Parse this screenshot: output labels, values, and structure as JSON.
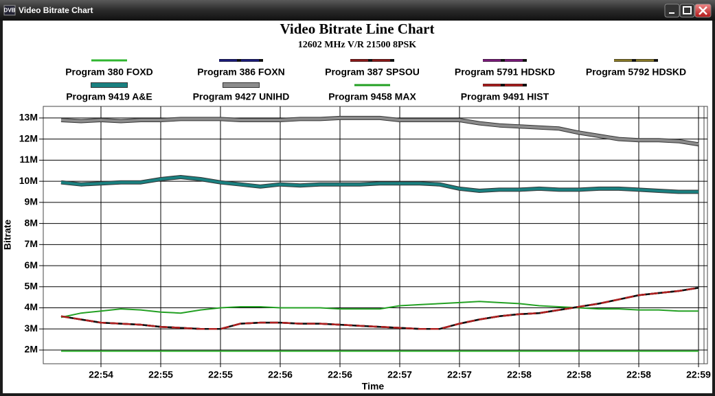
{
  "window": {
    "title": "Video Bitrate Chart"
  },
  "chart_data": {
    "type": "line",
    "title": "Video Bitrate Line Chart",
    "subtitle": "12602 MHz V/R 21500 8PSK",
    "x_label": "Time",
    "y_label": "Bitrate",
    "grid": true,
    "legend_position": "top",
    "categories": [
      null,
      null,
      "22:54",
      null,
      null,
      "22:55",
      null,
      null,
      "22:55",
      null,
      null,
      "22:56",
      null,
      null,
      "22:56",
      null,
      null,
      "22:57",
      null,
      null,
      "22:57",
      null,
      null,
      "22:58",
      null,
      null,
      "22:58",
      null,
      null,
      "22:58",
      null,
      null,
      "22:59"
    ],
    "ylim": [
      1.35,
      13.55
    ],
    "yticks": [
      {
        "value": 2,
        "label": "2M"
      },
      {
        "value": 3,
        "label": "3M"
      },
      {
        "value": 4,
        "label": "4M"
      },
      {
        "value": 5,
        "label": "5M"
      },
      {
        "value": 6,
        "label": "6M"
      },
      {
        "value": 7,
        "label": "7M"
      },
      {
        "value": 8,
        "label": "8M"
      },
      {
        "value": 9,
        "label": "9M"
      },
      {
        "value": 10,
        "label": "10M"
      },
      {
        "value": 11,
        "label": "11M"
      },
      {
        "value": 12,
        "label": "12M"
      },
      {
        "value": 13,
        "label": "13M"
      }
    ],
    "series": [
      {
        "name": "Program 380 FOXD",
        "color": "#2fb52f",
        "line_style": "solid",
        "values": [
          1.95,
          1.95,
          1.95,
          1.95,
          1.95,
          1.95,
          1.95,
          1.95,
          1.95,
          1.95,
          1.95,
          1.95,
          1.95,
          1.95,
          1.95,
          1.95,
          1.95,
          1.95,
          1.95,
          1.95,
          1.95,
          1.95,
          1.95,
          1.95,
          1.95,
          1.95,
          1.95,
          1.95,
          1.95,
          1.95,
          1.95,
          1.95,
          1.95
        ]
      },
      {
        "name": "Program 386 FOXN",
        "color": "#1c1c7a",
        "line_style": "dashed",
        "values": [
          null,
          null,
          null,
          null,
          null,
          null,
          null,
          null,
          null,
          null,
          null,
          null,
          null,
          null,
          null,
          null,
          null,
          null,
          null,
          null,
          null,
          null,
          null,
          null,
          null,
          null,
          null,
          null,
          null,
          null,
          null,
          null,
          null
        ]
      },
      {
        "name": "Program 387 SPSOU",
        "color": "#8b1a1a",
        "line_style": "dashed",
        "values": [
          3.6,
          3.45,
          3.3,
          3.25,
          3.2,
          3.1,
          3.05,
          3.0,
          3.0,
          3.25,
          3.3,
          3.3,
          3.25,
          3.25,
          3.2,
          3.15,
          3.1,
          3.05,
          3.0,
          3.0,
          3.25,
          3.45,
          3.6,
          3.7,
          3.75,
          3.9,
          4.05,
          4.2,
          4.4,
          4.6,
          4.7,
          4.8,
          4.95
        ]
      },
      {
        "name": "Program 5791 HDSKD",
        "color": "#7a1c7a",
        "line_style": "dashed",
        "values": [
          null,
          null,
          null,
          null,
          null,
          null,
          null,
          null,
          null,
          null,
          null,
          null,
          null,
          null,
          null,
          null,
          null,
          null,
          null,
          null,
          null,
          null,
          null,
          null,
          null,
          null,
          null,
          null,
          null,
          null,
          null,
          null,
          null
        ]
      },
      {
        "name": "Program 5792 HDSKD",
        "color": "#8a7a2a",
        "line_style": "dashed",
        "values": [
          null,
          null,
          null,
          null,
          null,
          null,
          null,
          null,
          null,
          null,
          null,
          null,
          null,
          null,
          null,
          null,
          null,
          null,
          null,
          null,
          null,
          null,
          null,
          null,
          null,
          null,
          null,
          null,
          null,
          null,
          null,
          null,
          null
        ]
      },
      {
        "name": "Program 9419 A&E",
        "color": "#1a8080",
        "line_style": "thick",
        "values": [
          9.95,
          9.85,
          9.9,
          9.95,
          9.95,
          10.1,
          10.2,
          10.1,
          9.95,
          9.85,
          9.75,
          9.85,
          9.8,
          9.85,
          9.85,
          9.85,
          9.9,
          9.9,
          9.9,
          9.85,
          9.65,
          9.55,
          9.6,
          9.6,
          9.65,
          9.6,
          9.6,
          9.65,
          9.65,
          9.6,
          9.55,
          9.5,
          9.5
        ]
      },
      {
        "name": "Program 9427 UNIHD",
        "color": "#8c8c8c",
        "line_style": "thick",
        "values": [
          12.9,
          12.85,
          12.9,
          12.85,
          12.9,
          12.9,
          12.95,
          12.95,
          12.95,
          12.9,
          12.9,
          12.9,
          12.95,
          12.95,
          13.0,
          13.0,
          13.0,
          12.9,
          12.9,
          12.9,
          12.9,
          12.75,
          12.65,
          12.6,
          12.55,
          12.5,
          12.3,
          12.15,
          12.0,
          11.95,
          11.95,
          11.9,
          11.75
        ]
      },
      {
        "name": "Program 9458 MAX",
        "color": "#22a022",
        "line_style": "solid",
        "values": [
          3.55,
          3.75,
          3.85,
          3.95,
          3.9,
          3.8,
          3.75,
          3.9,
          4.0,
          4.05,
          4.05,
          4.0,
          4.0,
          4.0,
          3.95,
          3.95,
          3.95,
          4.1,
          4.15,
          4.2,
          4.25,
          4.3,
          4.25,
          4.2,
          4.1,
          4.05,
          4.0,
          3.95,
          3.95,
          3.9,
          3.9,
          3.85,
          3.85
        ]
      },
      {
        "name": "Program 9491 HIST",
        "color": "#b02020",
        "line_style": "dashed",
        "values": [
          3.6,
          3.45,
          3.3,
          3.25,
          3.2,
          3.1,
          3.05,
          3.0,
          3.0,
          3.25,
          3.3,
          3.3,
          3.25,
          3.25,
          3.2,
          3.15,
          3.1,
          3.05,
          3.0,
          3.0,
          3.25,
          3.45,
          3.6,
          3.7,
          3.75,
          3.9,
          4.05,
          4.2,
          4.4,
          4.6,
          4.7,
          4.8,
          4.95
        ]
      }
    ]
  }
}
